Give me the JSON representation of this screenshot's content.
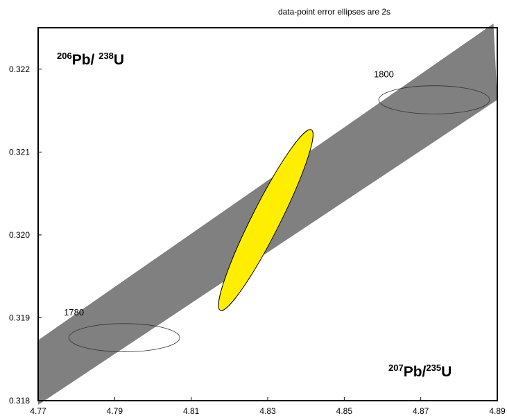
{
  "chart_data": {
    "type": "scatter",
    "title": "data-point error ellipses are 2s",
    "xlabel": {
      "sup1": "207",
      "base1": "Pb/",
      "sup2": "235",
      "base2": "U"
    },
    "ylabel": {
      "sup1": "206",
      "base1": "Pb/ ",
      "sup2": "238",
      "base2": "U"
    },
    "xlim": [
      4.77,
      4.89
    ],
    "ylim": [
      0.318,
      0.3225
    ],
    "x_ticks": [
      "4.77",
      "4.79",
      "4.81",
      "4.83",
      "4.85",
      "4.87",
      "4.89"
    ],
    "y_ticks": [
      "0.318",
      "0.319",
      "0.320",
      "0.321",
      "0.322"
    ],
    "grid": false,
    "concordia_band": {
      "color": "#808080",
      "upper": [
        [
          4.77,
          0.31873
        ],
        [
          4.889,
          0.32255
        ]
      ],
      "lower": [
        [
          4.77,
          0.31795
        ],
        [
          4.89,
          0.32163
        ]
      ]
    },
    "age_markers": [
      {
        "label": "1780",
        "x": 4.7925,
        "y": 0.31876,
        "rx": 0.0145,
        "ry": 0.00017
      },
      {
        "label": "1800",
        "x": 4.8735,
        "y": 0.32163,
        "rx": 0.0145,
        "ry": 0.00017
      }
    ],
    "data_ellipse": {
      "color": "#ffee00",
      "center": [
        4.8295,
        0.32018
      ],
      "ends": [
        [
          4.8176,
          0.31909
        ],
        [
          4.8414,
          0.32127
        ]
      ],
      "half_width": 0.0037
    }
  }
}
